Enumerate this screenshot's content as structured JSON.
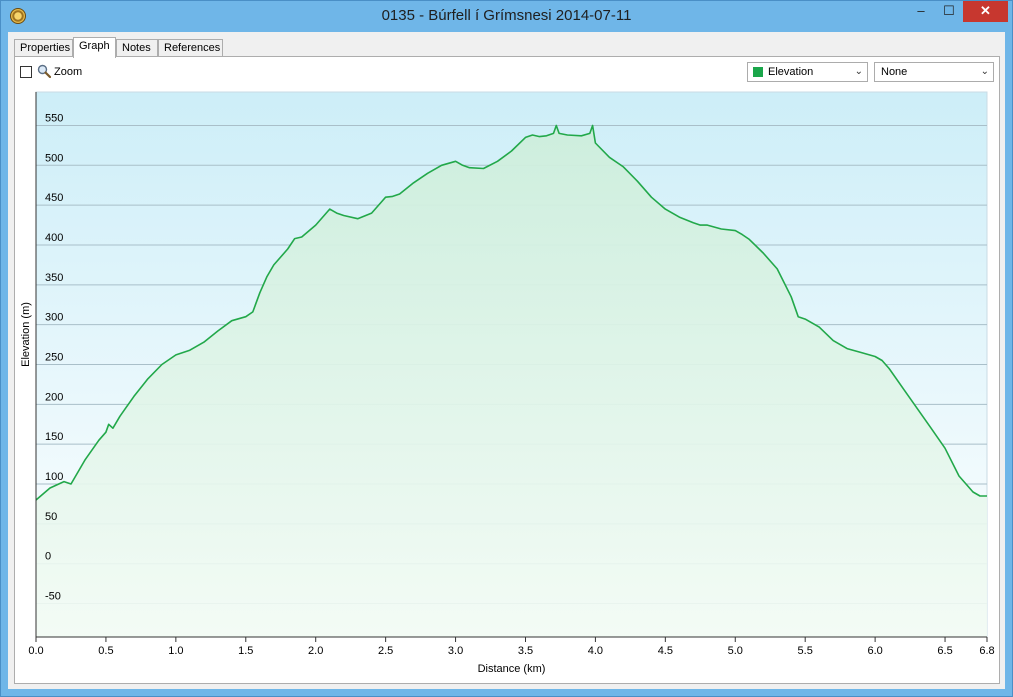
{
  "window": {
    "title": "0135 - Búrfell í Grímsnesi 2014-07-11",
    "min_glyph": "–",
    "max_glyph": "☐",
    "close_glyph": "✕"
  },
  "tabs": [
    {
      "label": "Properties",
      "active": false
    },
    {
      "label": "Graph",
      "active": true
    },
    {
      "label": "Notes",
      "active": false
    },
    {
      "label": "References",
      "active": false
    }
  ],
  "toolbar": {
    "zoom_label": "Zoom",
    "zoom_checked": false,
    "series_select": {
      "value": "Elevation",
      "color": "#1aa64a"
    },
    "secondary_select": {
      "value": "None"
    }
  },
  "chart_data": {
    "type": "area",
    "title": "",
    "xlabel": "Distance (km)",
    "ylabel": "Elevation (m)",
    "xlim": [
      0,
      6.8
    ],
    "ylim": [
      -92,
      592
    ],
    "x_ticks": [
      0.0,
      0.5,
      1.0,
      1.5,
      2.0,
      2.5,
      3.0,
      3.5,
      4.0,
      4.5,
      5.0,
      5.5,
      6.0,
      6.5,
      6.8
    ],
    "x_tick_labels": [
      "0.0",
      "0.5",
      "1.0",
      "1.5",
      "2.0",
      "2.5",
      "3.0",
      "3.5",
      "4.0",
      "4.5",
      "5.0",
      "5.5",
      "6.0",
      "6.5",
      "6.8"
    ],
    "y_ticks": [
      -50,
      0,
      50,
      100,
      150,
      200,
      250,
      300,
      350,
      400,
      450,
      500,
      550
    ],
    "grid": true,
    "legend": "none",
    "series": [
      {
        "name": "Elevation",
        "color": "#22a84a",
        "x": [
          0.0,
          0.1,
          0.2,
          0.25,
          0.35,
          0.45,
          0.5,
          0.52,
          0.55,
          0.6,
          0.7,
          0.8,
          0.9,
          1.0,
          1.1,
          1.2,
          1.3,
          1.4,
          1.5,
          1.55,
          1.6,
          1.65,
          1.7,
          1.8,
          1.85,
          1.9,
          2.0,
          2.05,
          2.1,
          2.15,
          2.2,
          2.3,
          2.4,
          2.5,
          2.55,
          2.6,
          2.7,
          2.8,
          2.9,
          3.0,
          3.05,
          3.1,
          3.2,
          3.3,
          3.4,
          3.5,
          3.55,
          3.6,
          3.65,
          3.7,
          3.72,
          3.74,
          3.8,
          3.9,
          3.96,
          3.98,
          4.0,
          4.1,
          4.2,
          4.3,
          4.4,
          4.5,
          4.6,
          4.7,
          4.75,
          4.8,
          4.9,
          5.0,
          5.05,
          5.1,
          5.2,
          5.3,
          5.4,
          5.45,
          5.5,
          5.6,
          5.7,
          5.8,
          5.9,
          6.0,
          6.05,
          6.1,
          6.2,
          6.3,
          6.4,
          6.5,
          6.6,
          6.7,
          6.75,
          6.8
        ],
        "y": [
          80,
          95,
          103,
          100,
          130,
          155,
          165,
          175,
          170,
          185,
          210,
          232,
          250,
          262,
          268,
          278,
          292,
          305,
          310,
          316,
          340,
          360,
          375,
          395,
          408,
          410,
          425,
          435,
          445,
          440,
          437,
          433,
          440,
          460,
          461,
          464,
          478,
          490,
          500,
          505,
          500,
          497,
          496,
          505,
          518,
          535,
          538,
          536,
          537,
          540,
          550,
          540,
          538,
          537,
          540,
          550,
          528,
          510,
          498,
          480,
          460,
          445,
          435,
          428,
          425,
          425,
          420,
          418,
          413,
          407,
          390,
          370,
          335,
          310,
          307,
          297,
          280,
          270,
          265,
          260,
          255,
          245,
          220,
          195,
          170,
          145,
          110,
          90,
          85,
          85
        ]
      }
    ]
  }
}
